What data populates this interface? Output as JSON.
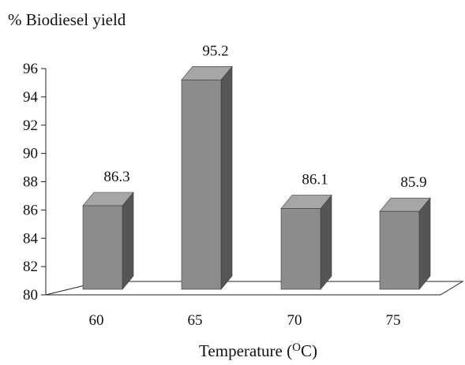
{
  "chart_data": {
    "type": "bar",
    "style": "3d-column",
    "ylabel": "% Biodiesel yield",
    "xlabel_main": "Temperature (",
    "xlabel_super": "O",
    "xlabel_end": "C)",
    "categories": [
      "60",
      "65",
      "70",
      "75"
    ],
    "values": [
      86.3,
      95.2,
      86.1,
      85.9
    ],
    "data_labels": [
      "86.3",
      "95.2",
      "86.1",
      "85.9"
    ],
    "ylim": [
      80,
      96
    ],
    "yticks": [
      "80",
      "82",
      "84",
      "86",
      "88",
      "90",
      "92",
      "94",
      "96"
    ],
    "grid": false,
    "legend": "none",
    "colors": {
      "bar_front": "#8c8c8c",
      "bar_side": "#555555",
      "bar_top": "#a6a6a6",
      "floor": "#ffffff",
      "axis": "#222222"
    }
  }
}
